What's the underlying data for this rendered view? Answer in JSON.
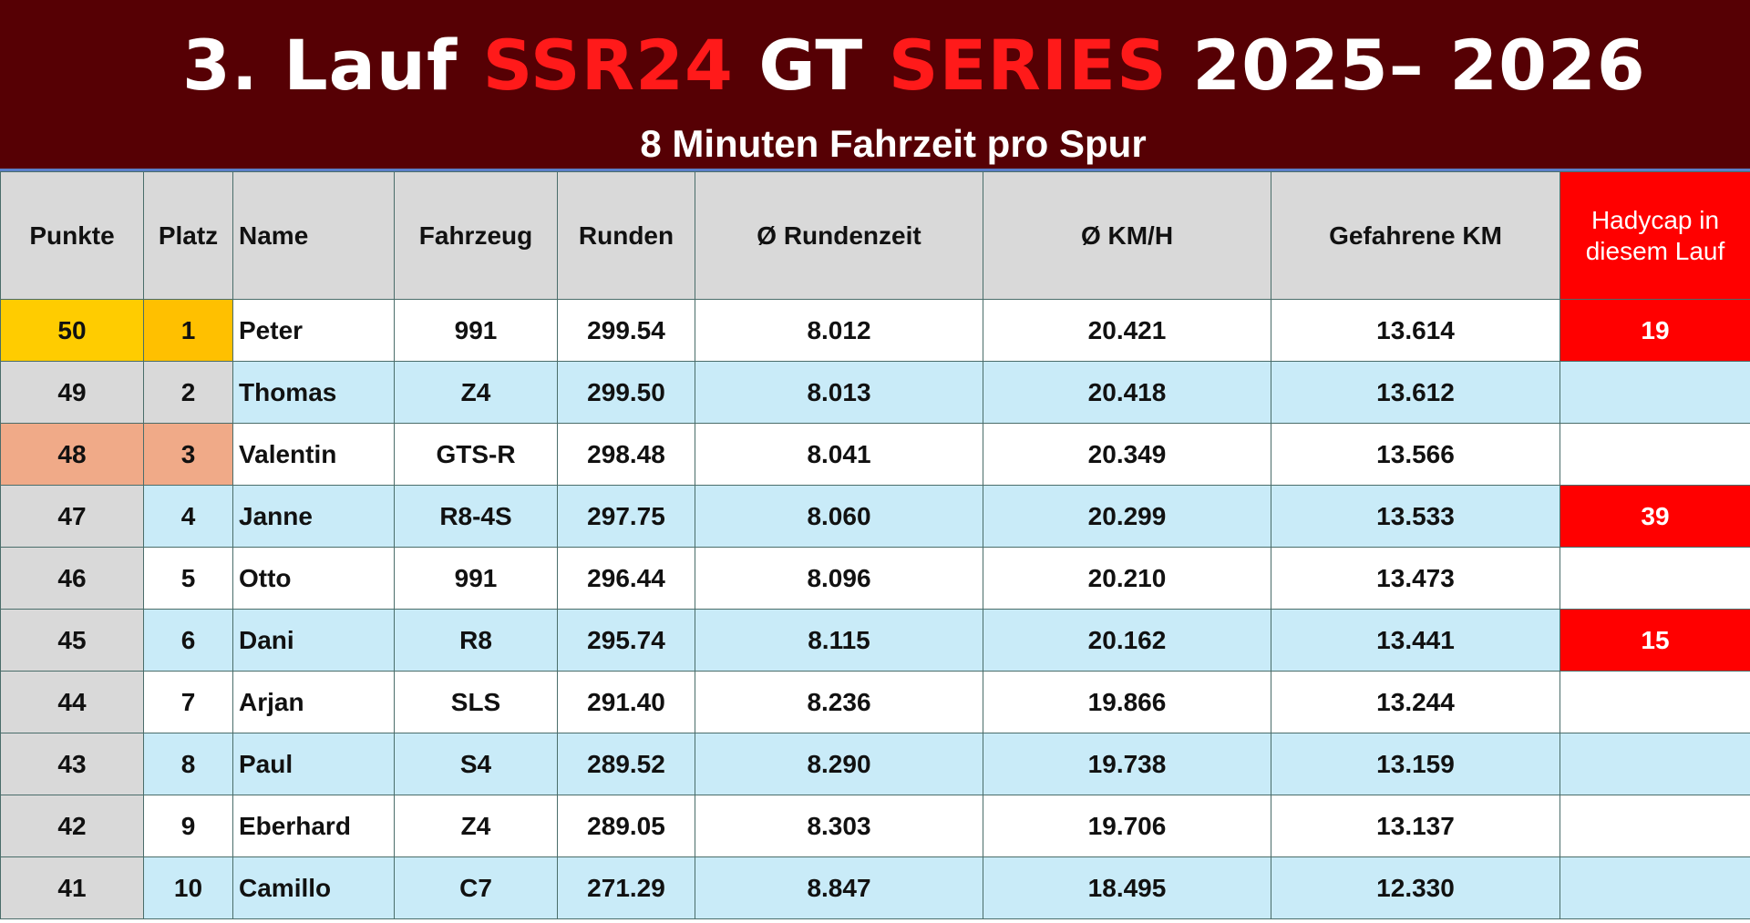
{
  "banner": {
    "title_part1": "3. Lauf ",
    "title_red1": "SSR24",
    "title_part2": " GT ",
    "title_red2": "SERIES",
    "title_part3": " 2025– 2026",
    "subtitle": "8 Minuten Fahrzeit pro Spur"
  },
  "colors": {
    "banner_bg": "#560004",
    "title_red": "#ff1a1a",
    "row_blue": "#c9ebf8",
    "header_gray": "#d9d9d9",
    "gold": "#ffc000",
    "bronze": "#f0aa88",
    "handicap_red": "#ff0000"
  },
  "table": {
    "headers": {
      "punkte": "Punkte",
      "platz": "Platz",
      "name": "Name",
      "fahrzeug": "Fahrzeug",
      "runden": "Runden",
      "rundenzeit": "Ø Rundenzeit",
      "kmh": "Ø KM/H",
      "km": "Gefahrene KM",
      "handicap": "Hadycap in diesem Lauf"
    },
    "rows": [
      {
        "punkte": "50",
        "platz": "1",
        "name": "Peter",
        "fahrzeug": "991",
        "runden": "299.54",
        "rundenzeit": "8.012",
        "kmh": "20.421",
        "km": "13.614",
        "handicap": "19"
      },
      {
        "punkte": "49",
        "platz": "2",
        "name": "Thomas",
        "fahrzeug": "Z4",
        "runden": "299.50",
        "rundenzeit": "8.013",
        "kmh": "20.418",
        "km": "13.612",
        "handicap": ""
      },
      {
        "punkte": "48",
        "platz": "3",
        "name": "Valentin",
        "fahrzeug": "GTS-R",
        "runden": "298.48",
        "rundenzeit": "8.041",
        "kmh": "20.349",
        "km": "13.566",
        "handicap": ""
      },
      {
        "punkte": "47",
        "platz": "4",
        "name": "Janne",
        "fahrzeug": "R8-4S",
        "runden": "297.75",
        "rundenzeit": "8.060",
        "kmh": "20.299",
        "km": "13.533",
        "handicap": "39"
      },
      {
        "punkte": "46",
        "platz": "5",
        "name": "Otto",
        "fahrzeug": "991",
        "runden": "296.44",
        "rundenzeit": "8.096",
        "kmh": "20.210",
        "km": "13.473",
        "handicap": ""
      },
      {
        "punkte": "45",
        "platz": "6",
        "name": "Dani",
        "fahrzeug": "R8",
        "runden": "295.74",
        "rundenzeit": "8.115",
        "kmh": "20.162",
        "km": "13.441",
        "handicap": "15"
      },
      {
        "punkte": "44",
        "platz": "7",
        "name": "Arjan",
        "fahrzeug": "SLS",
        "runden": "291.40",
        "rundenzeit": "8.236",
        "kmh": "19.866",
        "km": "13.244",
        "handicap": ""
      },
      {
        "punkte": "43",
        "platz": "8",
        "name": "Paul",
        "fahrzeug": "S4",
        "runden": "289.52",
        "rundenzeit": "8.290",
        "kmh": "19.738",
        "km": "13.159",
        "handicap": ""
      },
      {
        "punkte": "42",
        "platz": "9",
        "name": "Eberhard",
        "fahrzeug": "Z4",
        "runden": "289.05",
        "rundenzeit": "8.303",
        "kmh": "19.706",
        "km": "13.137",
        "handicap": ""
      },
      {
        "punkte": "41",
        "platz": "10",
        "name": "Camillo",
        "fahrzeug": "C7",
        "runden": "271.29",
        "rundenzeit": "8.847",
        "kmh": "18.495",
        "km": "12.330",
        "handicap": ""
      }
    ]
  }
}
